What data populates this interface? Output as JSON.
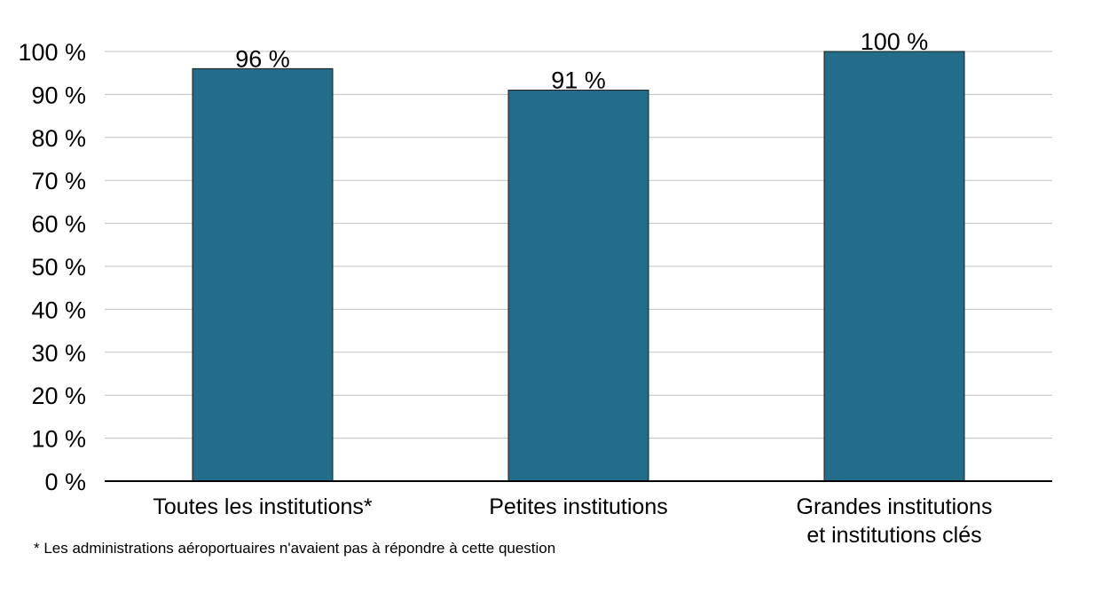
{
  "chart_data": {
    "type": "bar",
    "categories": [
      [
        "Toutes les institutions*"
      ],
      [
        "Petites institutions"
      ],
      [
        "Grandes institutions",
        "et institutions clés"
      ]
    ],
    "values": [
      96,
      91,
      100
    ],
    "data_labels": [
      "96 %",
      "91 %",
      "100 %"
    ],
    "ylim": [
      0,
      100
    ],
    "yticks": [
      0,
      10,
      20,
      30,
      40,
      50,
      60,
      70,
      80,
      90,
      100
    ],
    "ytick_labels": [
      "0 %",
      "10 %",
      "20 %",
      "30 %",
      "40 %",
      "50 %",
      "60 %",
      "70 %",
      "80 %",
      "90 %",
      "100 %"
    ],
    "title": "",
    "xlabel": "",
    "ylabel": "",
    "grid": true,
    "bar_color": "#236d8b",
    "gridline_color": "#c0c0c0",
    "footnote": "* Les administrations aéroportuaires n'avaient pas à répondre à cette question"
  }
}
